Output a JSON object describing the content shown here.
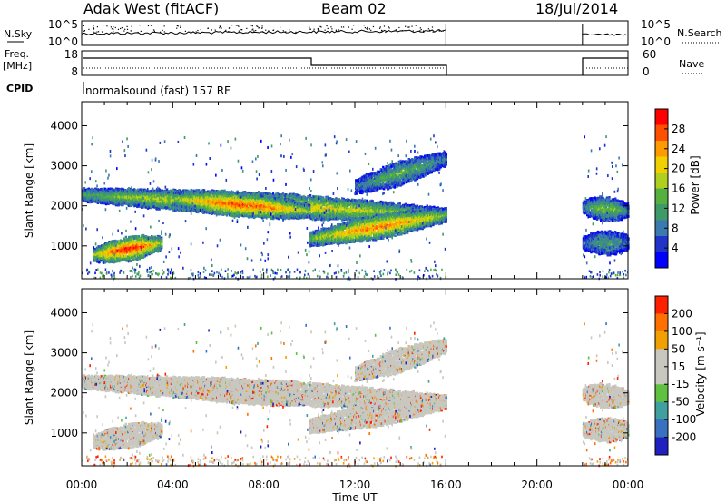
{
  "header": {
    "station": "Adak West (fitACF)",
    "beam": "Beam 02",
    "date": "18/Jul/2014"
  },
  "summary_panels": {
    "nsky": {
      "label": "N.Sky",
      "ticks": [
        "10^5",
        "10^0"
      ],
      "right_label": "N.Search",
      "right_ticks": [
        "10^5",
        "10^0"
      ]
    },
    "freq": {
      "label_top": "Freq.",
      "label_bottom": "[MHz]",
      "ticks": [
        "18",
        "8"
      ],
      "right_label": "Nave",
      "right_ticks": [
        "60",
        "0"
      ]
    },
    "cpid": {
      "label": "CPID",
      "program": "normalsound (fast) 157 RF"
    }
  },
  "colors": {
    "power_scale": [
      "#0000ff",
      "#2035c8",
      "#3a7ab0",
      "#3f9a6a",
      "#55b040",
      "#b0d020",
      "#f0d000",
      "#ff9a00",
      "#ff5000",
      "#ff0000"
    ],
    "velocity_scale": [
      "#2020c0",
      "#3a70c0",
      "#40a0a0",
      "#60c040",
      "#c8c8c0",
      "#c8c8c0",
      "#f0a000",
      "#ff7000",
      "#ff2000"
    ]
  },
  "chart_data": [
    {
      "type": "heatmap",
      "name": "power",
      "ylabel": "Slant Range [km]",
      "yticks": [
        "1000",
        "2000",
        "3000",
        "4000"
      ],
      "ylim": [
        180,
        4600
      ],
      "x_range_hours": [
        0,
        24
      ],
      "data_gap_hours": [
        16,
        22
      ],
      "colorbar": {
        "label": "Power [dB]",
        "ticks": [
          "4",
          "8",
          "12",
          "16",
          "20",
          "24",
          "28"
        ],
        "range": [
          0,
          32
        ]
      },
      "echo_bands": [
        {
          "from_hour": 0.0,
          "to_hour": 16.0,
          "range_km_start": 2300,
          "range_km_end": 1800,
          "peak_db": 22
        },
        {
          "from_hour": 0.5,
          "to_hour": 3.5,
          "range_km_start": 800,
          "range_km_end": 1100,
          "peak_db": 30
        },
        {
          "from_hour": 4.0,
          "to_hour": 10.0,
          "range_km_start": 2200,
          "range_km_end": 1900,
          "peak_db": 28
        },
        {
          "from_hour": 10.0,
          "to_hour": 16.0,
          "range_km_start": 1200,
          "range_km_end": 1800,
          "peak_db": 26
        },
        {
          "from_hour": 12.0,
          "to_hour": 16.0,
          "range_km_start": 2500,
          "range_km_end": 3200,
          "peak_db": 14
        },
        {
          "from_hour": 22.0,
          "to_hour": 24.0,
          "range_km_start": 2000,
          "range_km_end": 1900,
          "peak_db": 16
        },
        {
          "from_hour": 22.0,
          "to_hour": 24.0,
          "range_km_start": 1100,
          "range_km_end": 1100,
          "peak_db": 12
        }
      ]
    },
    {
      "type": "heatmap",
      "name": "velocity",
      "ylabel": "Slant Range [km]",
      "xlabel": "Time UT",
      "yticks": [
        "1000",
        "2000",
        "3000",
        "4000"
      ],
      "xticks": [
        "00:00",
        "04:00",
        "08:00",
        "12:00",
        "16:00",
        "20:00",
        "00:00"
      ],
      "ylim": [
        180,
        4600
      ],
      "x_range_hours": [
        0,
        24
      ],
      "data_gap_hours": [
        16,
        22
      ],
      "colorbar": {
        "label": "Velocity [m s⁻¹]",
        "ticks": [
          "200",
          "100",
          "50",
          "15",
          "-15",
          "-50",
          "-100",
          "-200"
        ]
      }
    }
  ]
}
